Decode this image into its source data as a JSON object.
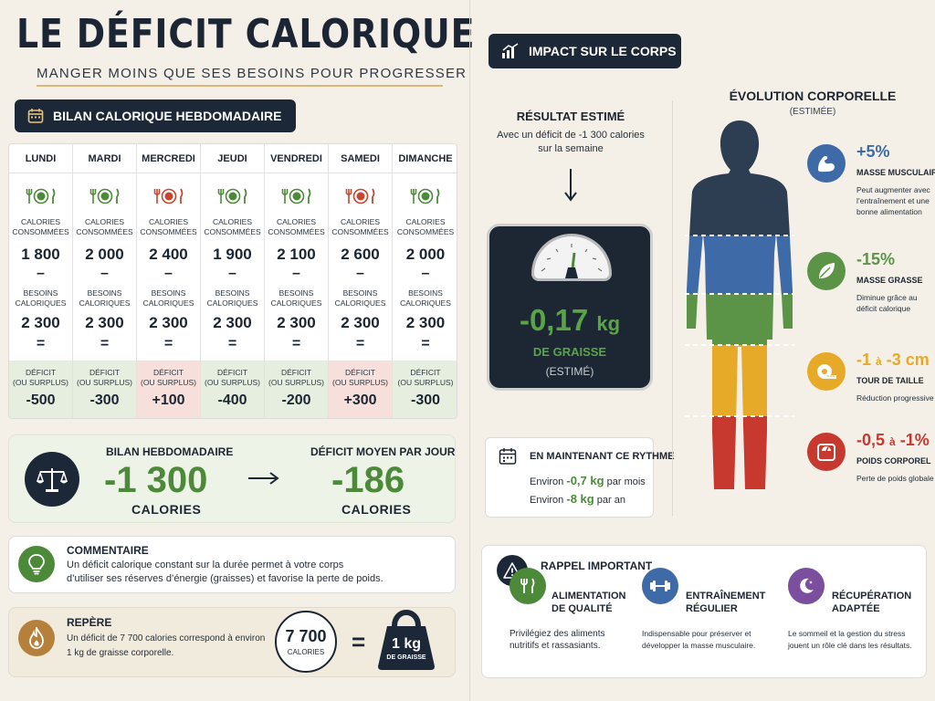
{
  "header": {
    "title": "LE DÉFICIT CALORIQUE",
    "subtitle": "MANGER MOINS QUE SES BESOINS POUR PROGRESSER"
  },
  "bilan": {
    "heading": "BILAN CALORIQUE HEBDOMADAIRE",
    "consumed_label_1": "CALORIES",
    "consumed_label_2": "CONSOMMÉES",
    "needs_label_1": "BESOINS",
    "needs_label_2": "CALORIQUES",
    "minus": "–",
    "equals": "=",
    "result_label_1": "DÉFICIT",
    "result_label_2": "(OU SURPLUS)",
    "days": [
      {
        "name": "LUNDI",
        "consumed": "1 800",
        "needs": "2 300",
        "result": "-500",
        "status": "deficit"
      },
      {
        "name": "MARDI",
        "consumed": "2 000",
        "needs": "2 300",
        "result": "-300",
        "status": "deficit"
      },
      {
        "name": "MERCREDI",
        "consumed": "2 400",
        "needs": "2 300",
        "result": "+100",
        "status": "surplus"
      },
      {
        "name": "JEUDI",
        "consumed": "1 900",
        "needs": "2 300",
        "result": "-400",
        "status": "deficit"
      },
      {
        "name": "VENDREDI",
        "consumed": "2 100",
        "needs": "2 300",
        "result": "-200",
        "status": "deficit"
      },
      {
        "name": "SAMEDI",
        "consumed": "2 600",
        "needs": "2 300",
        "result": "+300",
        "status": "surplus"
      },
      {
        "name": "DIMANCHE",
        "consumed": "2 000",
        "needs": "2 300",
        "result": "-300",
        "status": "deficit"
      }
    ]
  },
  "summary": {
    "weekly_label": "BILAN HEBDOMADAIRE",
    "weekly_value": "-1 300",
    "weekly_unit": "CALORIES",
    "daily_label": "DÉFICIT MOYEN PAR JOUR",
    "daily_value": "-186",
    "daily_unit": "CALORIES"
  },
  "comment": {
    "heading": "COMMENTAIRE",
    "line1": "Un déficit calorique constant sur la durée permet à votre corps",
    "line2": "d’utiliser ses réserves d’énergie (graisses) et favorise la perte de poids."
  },
  "repere": {
    "heading": "REPÈRE",
    "line1": "Un déficit de 7 700 calories correspond à environ",
    "line2": "1 kg de graisse corporelle.",
    "circle_value": "7 700",
    "circle_unit": "CALORIES",
    "equals": "=",
    "weight_value": "1 kg",
    "weight_unit": "DE GRAISSE"
  },
  "impact": {
    "heading": "IMPACT SUR LE CORPS",
    "result_heading": "RÉSULTAT ESTIMÉ",
    "result_sub_1": "Avec un déficit de -1 300 calories",
    "result_sub_2": "sur la semaine",
    "scale_value": "-0,17",
    "scale_unit": "kg",
    "scale_label": "DE GRAISSE",
    "scale_note": "(ESTIMÉ)",
    "rythme_heading": "EN MAINTENANT CE RYTHME",
    "rythme_prefix_1": "Environ",
    "rythme_value_1": "-0,7 kg",
    "rythme_suffix_1": "par mois",
    "rythme_prefix_2": "Environ",
    "rythme_value_2": "-8 kg",
    "rythme_suffix_2": "par an"
  },
  "evolution": {
    "heading": "ÉVOLUTION CORPORELLE",
    "sub": "(ESTIMÉE)",
    "metrics": [
      {
        "value": "+5%",
        "name": "MASSE MUSCULAIRE",
        "desc": "Peut augmenter avec l’entraînement et une bonne alimentation",
        "color": "#3f6aa8",
        "icon": "muscle-icon"
      },
      {
        "value": "-15%",
        "name": "MASSE GRASSE",
        "desc": "Diminue grâce au déficit calorique",
        "color": "#5b9447",
        "icon": "leaf-icon"
      },
      {
        "value_a": "-1",
        "value_mid": "à",
        "value_b": "-3 cm",
        "name": "TOUR DE TAILLE",
        "desc": "Réduction progressive",
        "color": "#e7a928",
        "icon": "tape-measure-icon"
      },
      {
        "value_a": "-0,5",
        "value_mid": "à",
        "value_b": "-1%",
        "name": "POIDS CORPOREL",
        "desc": "Perte de poids globale",
        "color": "#c7382e",
        "icon": "scale-icon"
      }
    ]
  },
  "rappel": {
    "heading": "RAPPEL IMPORTANT",
    "items": [
      {
        "title_1": "ALIMENTATION",
        "title_2": "DE QUALITÉ",
        "desc": "Privilégiez des aliments nutritifs et rassasiants.",
        "icon": "fork-knife-icon"
      },
      {
        "title_1": "ENTRAÎNEMENT",
        "title_2": "RÉGULIER",
        "desc": "Indispensable pour préserver et développer la masse musculaire.",
        "icon": "dumbbell-icon"
      },
      {
        "title_1": "RÉCUPÉRATION",
        "title_2": "ADAPTÉE",
        "desc": "Le sommeil et la gestion du stress jouent un rôle clé dans les résultats.",
        "icon": "moon-icon"
      }
    ]
  },
  "colors": {
    "navy": "#1c2838",
    "green": "#4c8a3a",
    "red": "#c8452f",
    "body_blue": "#3f6aa8",
    "body_green": "#5b9447",
    "body_yellow": "#e7a928",
    "body_red": "#c7382e"
  }
}
